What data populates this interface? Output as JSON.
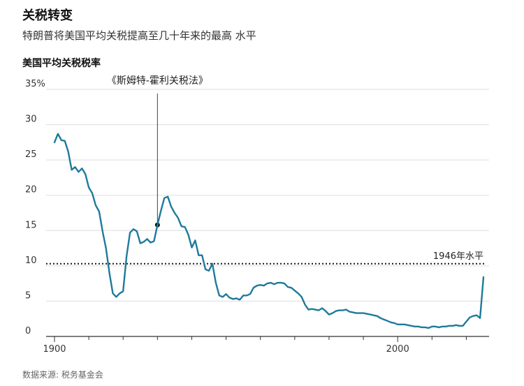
{
  "header": {
    "title": "关税转变",
    "subtitle": "特朗普将美国平均关税提高至几十年来的最高 水平",
    "chart_label": "美国平均关税税率"
  },
  "footer": {
    "source": "数据来源: 税务基金会"
  },
  "colors": {
    "line": "#1f7a9a",
    "grid": "#dddddd",
    "axis": "#333333",
    "reference": "#222222"
  },
  "chart_data": {
    "type": "line",
    "title": "美国平均关税税率",
    "xlim": [
      1900,
      2025
    ],
    "ylim": [
      0,
      35
    ],
    "yticks": [
      {
        "value": 0,
        "label": "0"
      },
      {
        "value": 5,
        "label": "5"
      },
      {
        "value": 10,
        "label": "10"
      },
      {
        "value": 15,
        "label": "15"
      },
      {
        "value": 20,
        "label": "20"
      },
      {
        "value": 25,
        "label": "25"
      },
      {
        "value": 30,
        "label": "30"
      },
      {
        "value": 35,
        "label": "35%"
      }
    ],
    "xticks": [
      {
        "value": 1900,
        "label": "1900"
      },
      {
        "value": 2000,
        "label": "2000"
      }
    ],
    "reference_line": {
      "y": 10.3,
      "label": "1946年水平"
    },
    "annotation": {
      "x": 1930,
      "y": 15.8,
      "label": "《斯姆特-霍利关税法》"
    },
    "grid": true,
    "series": [
      {
        "x": [
          1900,
          1901,
          1902,
          1903,
          1904,
          1905,
          1906,
          1907,
          1908,
          1909,
          1910,
          1911,
          1912,
          1913,
          1914,
          1915,
          1916,
          1917,
          1918,
          1919,
          1920,
          1921,
          1922,
          1923,
          1924,
          1925,
          1926,
          1927,
          1928,
          1929,
          1930,
          1931,
          1932,
          1933,
          1934,
          1935,
          1936,
          1937,
          1938,
          1939,
          1940,
          1941,
          1942,
          1943,
          1944,
          1945,
          1946,
          1947,
          1948,
          1949,
          1950,
          1951,
          1952,
          1953,
          1954,
          1955,
          1956,
          1957,
          1958,
          1959,
          1960,
          1961,
          1962,
          1963,
          1964,
          1965,
          1966,
          1967,
          1968,
          1969,
          1970,
          1971,
          1972,
          1973,
          1974,
          1975,
          1976,
          1977,
          1978,
          1979,
          1980,
          1981,
          1982,
          1983,
          1984,
          1985,
          1986,
          1987,
          1988,
          1989,
          1990,
          1991,
          1992,
          1993,
          1994,
          1995,
          1996,
          1997,
          1998,
          1999,
          2000,
          2001,
          2002,
          2003,
          2004,
          2005,
          2006,
          2007,
          2008,
          2009,
          2010,
          2011,
          2012,
          2013,
          2014,
          2015,
          2016,
          2017,
          2018,
          2019,
          2020,
          2021,
          2022,
          2023,
          2024,
          2025
        ],
        "values": [
          27.5,
          28.7,
          27.8,
          27.7,
          26.2,
          23.6,
          24.0,
          23.3,
          23.8,
          23.0,
          21.1,
          20.3,
          18.6,
          17.7,
          14.9,
          12.5,
          9.0,
          6.1,
          5.6,
          6.1,
          6.4,
          11.4,
          14.7,
          15.2,
          14.9,
          13.2,
          13.4,
          13.8,
          13.3,
          13.5,
          15.8,
          17.8,
          19.6,
          19.8,
          18.4,
          17.5,
          16.8,
          15.6,
          15.5,
          14.4,
          12.6,
          13.6,
          11.5,
          11.5,
          9.5,
          9.3,
          10.3,
          7.6,
          5.8,
          5.6,
          6.0,
          5.5,
          5.3,
          5.4,
          5.2,
          5.8,
          5.8,
          6.0,
          6.9,
          7.2,
          7.3,
          7.2,
          7.5,
          7.6,
          7.4,
          7.6,
          7.6,
          7.5,
          7.0,
          6.9,
          6.5,
          6.1,
          5.6,
          4.5,
          3.8,
          3.9,
          3.8,
          3.7,
          4.0,
          3.6,
          3.1,
          3.3,
          3.6,
          3.7,
          3.7,
          3.8,
          3.5,
          3.4,
          3.3,
          3.3,
          3.3,
          3.2,
          3.1,
          3.0,
          2.9,
          2.6,
          2.4,
          2.2,
          2.0,
          1.9,
          1.7,
          1.7,
          1.7,
          1.6,
          1.5,
          1.4,
          1.4,
          1.3,
          1.3,
          1.2,
          1.4,
          1.4,
          1.3,
          1.4,
          1.4,
          1.5,
          1.5,
          1.6,
          1.5,
          1.5,
          2.1,
          2.7,
          2.9,
          3.0,
          2.6,
          8.4
        ]
      }
    ]
  }
}
